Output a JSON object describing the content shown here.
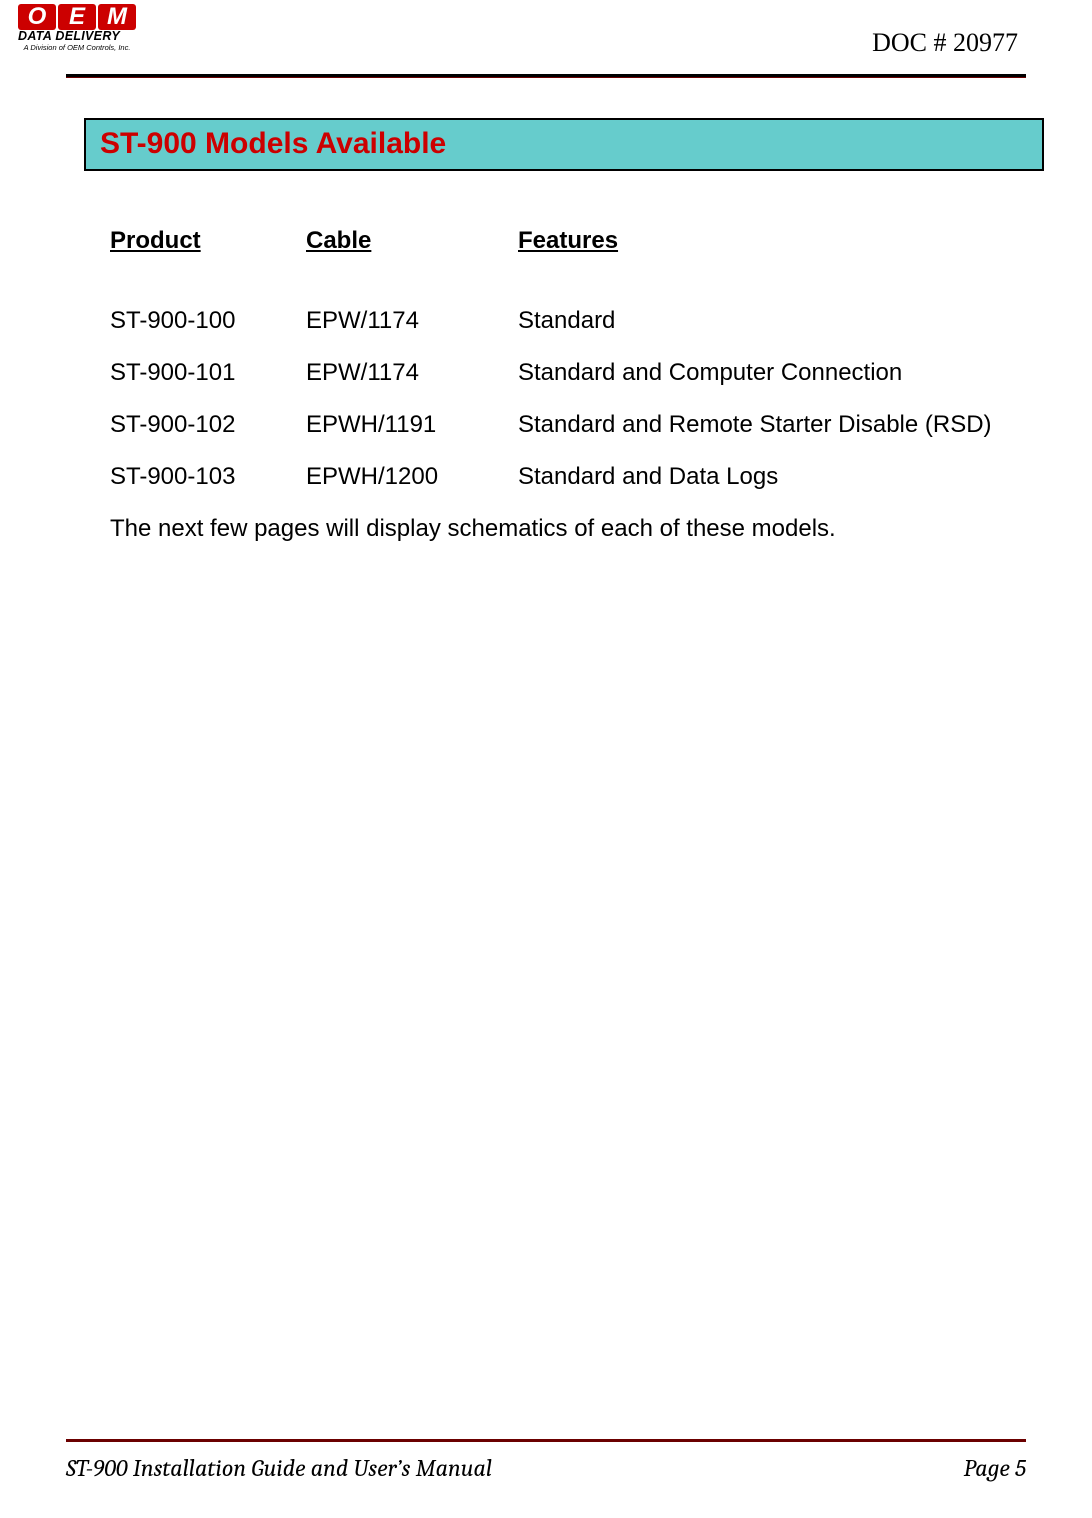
{
  "header": {
    "logo": {
      "letters": [
        "O",
        "E",
        "M"
      ],
      "line2": "DATA DELIVERY",
      "line3": "A Division of OEM Controls, Inc."
    },
    "doc_number": "DOC # 20977"
  },
  "section": {
    "title": "ST-900 Models Available",
    "banner_bg": "#66cccc",
    "banner_text_color": "#cc0000",
    "banner_border": "#000000"
  },
  "table": {
    "columns": [
      "Product",
      "Cable",
      "Features"
    ],
    "rows": [
      {
        "product": "ST-900-100",
        "cable": "EPW/1174",
        "features": "Standard"
      },
      {
        "product": "ST-900-101",
        "cable": "EPW/1174",
        "features": "Standard and Computer Connection"
      },
      {
        "product": "ST-900-102",
        "cable": "EPWH/1191",
        "features": "Standard and Remote Starter Disable (RSD)"
      },
      {
        "product": "ST-900-103",
        "cable": "EPWH/1200",
        "features": "Standard and Data Logs"
      }
    ]
  },
  "notes": "The next few pages will display schematics of each of these models.",
  "footer": {
    "title": "ST-900 Installation Guide and User’s Manual",
    "page": "Page 5",
    "rule_color": "#6b0000"
  },
  "colors": {
    "page_bg": "#ffffff",
    "text": "#000000",
    "logo_red": "#cc0000"
  }
}
